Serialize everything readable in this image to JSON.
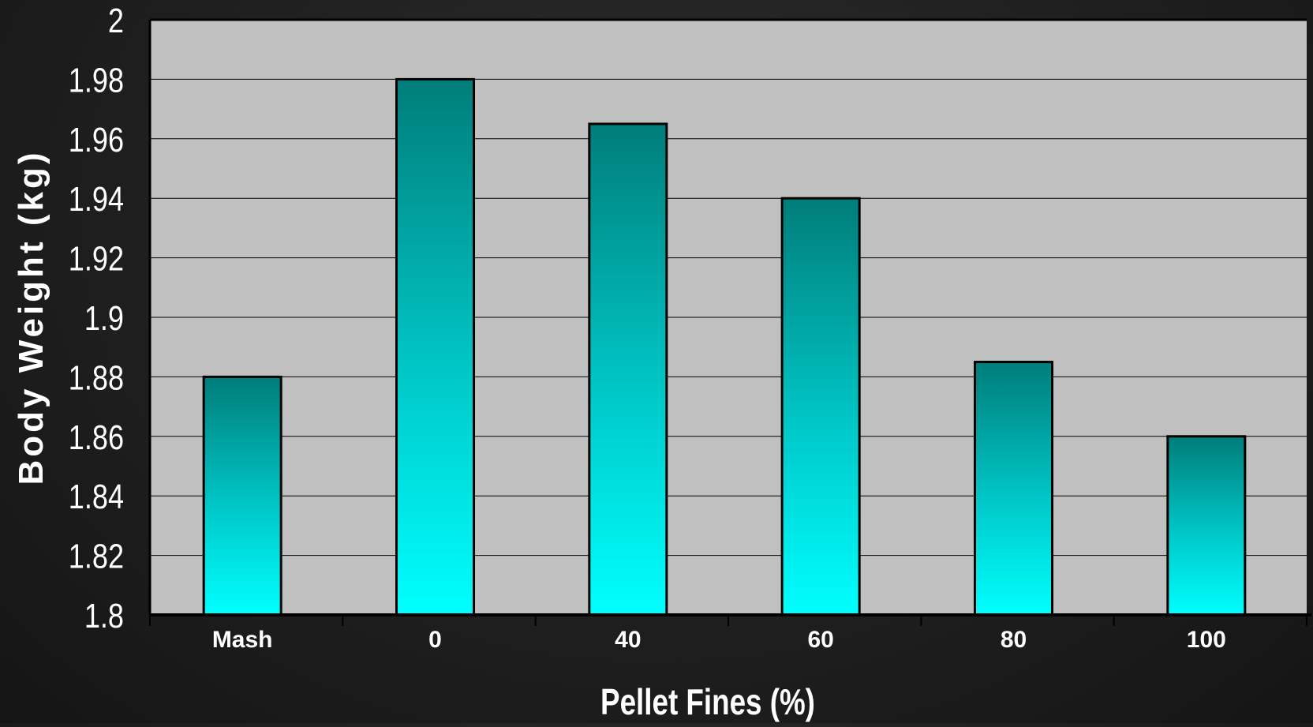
{
  "chart_data": {
    "type": "bar",
    "categories": [
      "Mash",
      "0",
      "40",
      "60",
      "80",
      "100"
    ],
    "values": [
      1.88,
      1.98,
      1.965,
      1.94,
      1.885,
      1.86
    ],
    "xlabel": "Pellet Fines (%)",
    "ylabel": "Body Weight (kg)",
    "ylim": [
      1.8,
      2.0
    ],
    "yticks": [
      "1.8",
      "1.82",
      "1.84",
      "1.86",
      "1.88",
      "1.9",
      "1.92",
      "1.94",
      "1.96",
      "1.98",
      "2"
    ],
    "grid": true,
    "legend": "none"
  },
  "colors": {
    "page_background": "#1f1f1f",
    "plot_background": "#c0c0c0",
    "bar_top": "#007d7a",
    "bar_bottom": "#00ffff",
    "bar_outline": "#000000",
    "gridline": "#000000",
    "text": "#ffffff"
  }
}
